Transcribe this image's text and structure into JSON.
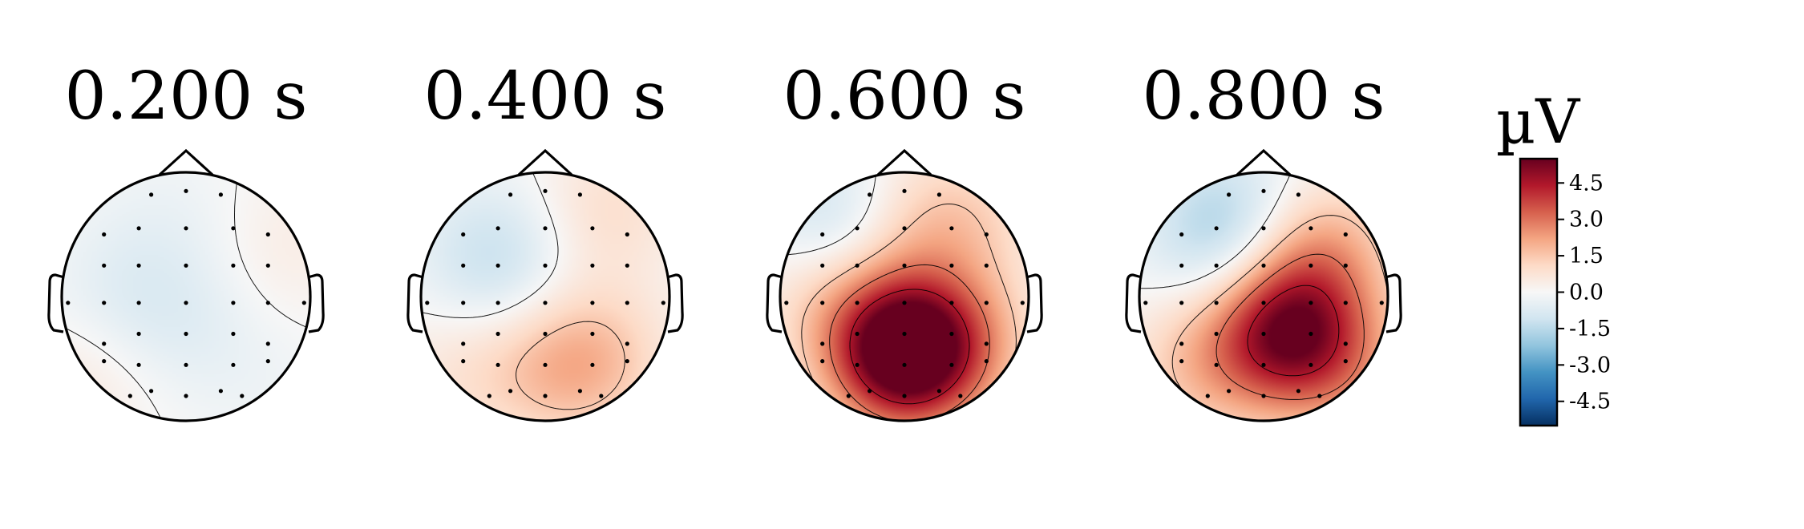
{
  "chart_data": {
    "type": "heatmap",
    "description_kind": "scalp topography",
    "cmap": "RdBu_r",
    "vlim": [
      -5.5,
      5.5
    ],
    "colors": {
      "min": "#053061",
      "mid": "#f7f7f7",
      "max": "#67001f"
    },
    "colorbar": {
      "unit": "µV",
      "ticks": [
        4.5,
        3.0,
        1.5,
        0.0,
        -1.5,
        -3.0,
        -4.5
      ],
      "tick_labels": [
        "4.5",
        "3.0",
        "1.5",
        "0.0",
        "-1.5",
        "-3.0",
        "-4.5"
      ]
    },
    "topomaps": [
      {
        "title": "0.200 s",
        "sources": [
          [
            -0.55,
            0.05,
            -0.5
          ],
          [
            0.0,
            -0.2,
            -0.5
          ],
          [
            -0.1,
            0.6,
            -0.3
          ],
          [
            0.8,
            0.4,
            0.4
          ],
          [
            -0.85,
            -0.7,
            0.5
          ],
          [
            0.6,
            -0.7,
            -0.2
          ]
        ]
      },
      {
        "title": "0.400 s",
        "sources": [
          [
            -0.4,
            0.3,
            -1.3
          ],
          [
            0.4,
            -0.5,
            1.4
          ],
          [
            0.5,
            0.7,
            0.9
          ],
          [
            -0.7,
            -0.6,
            0.6
          ],
          [
            0.0,
            -0.6,
            1.0
          ]
        ]
      },
      {
        "title": "0.600 s",
        "sources": [
          [
            0.0,
            -0.45,
            6.6
          ],
          [
            0.45,
            -0.35,
            1.4
          ],
          [
            -0.6,
            0.05,
            1.2
          ],
          [
            0.5,
            0.6,
            1.0
          ],
          [
            0.0,
            0.55,
            1.0
          ],
          [
            -0.52,
            0.55,
            -1.6
          ]
        ]
      },
      {
        "title": "0.800 s",
        "sources": [
          [
            0.2,
            -0.3,
            4.8
          ],
          [
            -0.35,
            0.5,
            -1.6
          ],
          [
            0.45,
            0.35,
            2.0
          ],
          [
            -0.5,
            -0.55,
            1.4
          ],
          [
            0.7,
            -0.6,
            1.2
          ],
          [
            -0.1,
            0.75,
            -0.4
          ]
        ]
      }
    ],
    "sensors": [
      [
        -0.28,
        0.82
      ],
      [
        0.0,
        0.85
      ],
      [
        0.28,
        0.82
      ],
      [
        -0.66,
        0.5
      ],
      [
        -0.38,
        0.55
      ],
      [
        0.0,
        0.55
      ],
      [
        0.38,
        0.55
      ],
      [
        0.66,
        0.5
      ],
      [
        -0.66,
        0.25
      ],
      [
        -0.38,
        0.25
      ],
      [
        0.0,
        0.25
      ],
      [
        0.38,
        0.25
      ],
      [
        0.66,
        0.25
      ],
      [
        -0.95,
        -0.05
      ],
      [
        -0.66,
        -0.05
      ],
      [
        -0.38,
        -0.05
      ],
      [
        0.0,
        -0.05
      ],
      [
        0.38,
        -0.05
      ],
      [
        0.66,
        -0.05
      ],
      [
        0.95,
        -0.05
      ],
      [
        -0.66,
        -0.38
      ],
      [
        -0.38,
        -0.3
      ],
      [
        0.0,
        -0.3
      ],
      [
        0.38,
        -0.3
      ],
      [
        0.66,
        -0.38
      ],
      [
        -0.66,
        -0.52
      ],
      [
        -0.38,
        -0.55
      ],
      [
        0.0,
        -0.55
      ],
      [
        0.38,
        -0.55
      ],
      [
        0.66,
        -0.52
      ],
      [
        -0.28,
        -0.76
      ],
      [
        0.0,
        -0.8
      ],
      [
        0.28,
        -0.76
      ],
      [
        -0.45,
        -0.8
      ],
      [
        0.45,
        -0.8
      ]
    ]
  }
}
